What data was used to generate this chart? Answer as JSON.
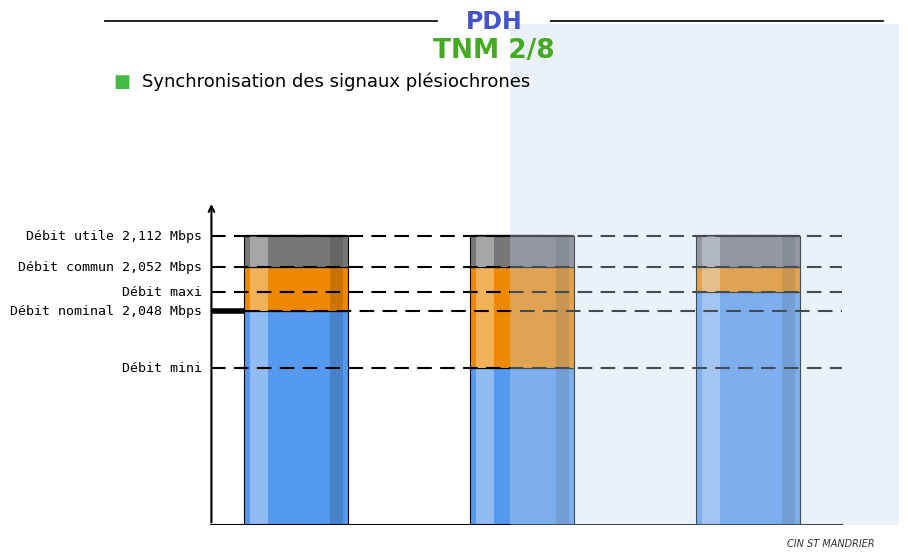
{
  "title_pdh": "PDH",
  "title_tnm": "TNM 2/8",
  "subtitle": "Synchronisation des signaux plésiochrones",
  "subtitle_bullet_color": "#44bb44",
  "pdh_color": "#4455cc",
  "tnm_color": "#44aa22",
  "subtitle_color": "#000000",
  "background_color": "#ffffff",
  "watermark_text": "CIN ST MANDRIER",
  "hline_labels": [
    "Débit utile 2,112 Mbps",
    "Débit commun 2,052 Mbps",
    "Débit maxi",
    "Débit nominal 2,048 Mbps",
    "Débit mini"
  ],
  "hline_values": [
    92,
    82,
    74,
    68,
    50
  ],
  "bars": [
    {
      "blue_height": 68,
      "orange_bottom": 68,
      "orange_height": 14,
      "gray_bottom": 82,
      "gray_height": 10
    },
    {
      "blue_height": 50,
      "orange_bottom": 50,
      "orange_height": 32,
      "gray_bottom": 82,
      "gray_height": 10
    },
    {
      "blue_height": 74,
      "orange_bottom": 74,
      "orange_height": 8,
      "gray_bottom": 82,
      "gray_height": 10
    }
  ],
  "bar_positions": [
    1.0,
    2.2,
    3.4
  ],
  "bar_width": 0.55,
  "blue_color": "#5599ee",
  "blue_highlight": "#88bbff",
  "blue_shadow": "#3366cc",
  "orange_color": "#ee8800",
  "orange_highlight": "#ffaa33",
  "gray_color": "#777777",
  "gray_highlight": "#aaaaaa",
  "xlim": [
    -0.1,
    4.2
  ],
  "ylim": [
    0,
    105
  ],
  "label_color": "#000000",
  "label_fontsize": 9.5,
  "dashed_line_color": "#000000",
  "axis_line_color": "#000000",
  "axis_x": 0.55,
  "axis_x_extend_right": 3.9,
  "blueprint_color": "#c8d8ee",
  "blueprint_alpha": 0.35
}
